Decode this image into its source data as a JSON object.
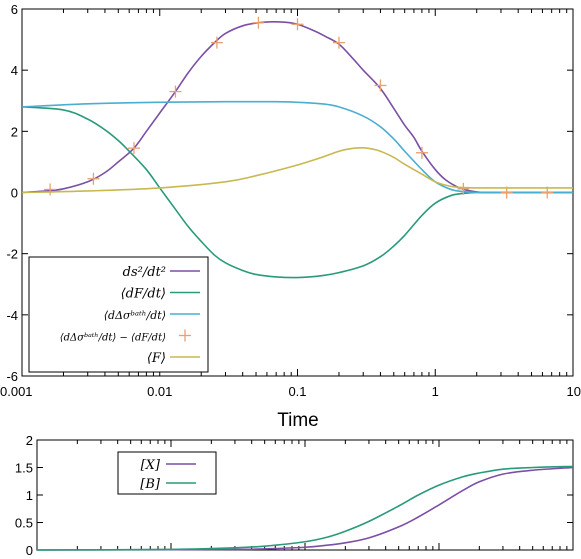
{
  "chart_data": [
    {
      "type": "line",
      "title": "",
      "xlabel": "Time",
      "ylabel": "",
      "xscale": "log",
      "xlim": [
        0.001,
        10
      ],
      "ylim": [
        -6,
        6
      ],
      "x_ticks": [
        "0.001",
        "0.01",
        "0.1",
        "1",
        "10"
      ],
      "y_ticks": [
        "-6",
        "-4",
        "-2",
        "0",
        "2",
        "4",
        "6"
      ],
      "legend_position": "bottom-left",
      "series": [
        {
          "name": "ds²/dt²",
          "color": "#7b4fa6",
          "style": "line",
          "x": [
            0.001,
            0.0015,
            0.002,
            0.003,
            0.004,
            0.005,
            0.0065,
            0.008,
            0.01,
            0.013,
            0.016,
            0.02,
            0.025,
            0.03,
            0.04,
            0.052,
            0.065,
            0.08,
            0.1,
            0.13,
            0.16,
            0.2,
            0.25,
            0.3,
            0.4,
            0.5,
            0.6,
            0.7,
            0.8,
            1.0,
            1.2,
            1.5,
            1.8,
            2.2,
            3,
            5,
            10
          ],
          "y": [
            0.0,
            0.05,
            0.12,
            0.35,
            0.65,
            1.0,
            1.45,
            2.0,
            2.6,
            3.3,
            3.9,
            4.45,
            4.9,
            5.2,
            5.45,
            5.55,
            5.58,
            5.57,
            5.5,
            5.3,
            5.1,
            4.85,
            4.4,
            4.0,
            3.4,
            2.75,
            2.2,
            1.8,
            1.35,
            0.75,
            0.4,
            0.15,
            0.05,
            0.0,
            0.0,
            0.0,
            0.0
          ]
        },
        {
          "name": "⟨dF/dt⟩",
          "color": "#2a9a7a",
          "style": "line",
          "x": [
            0.001,
            0.002,
            0.003,
            0.004,
            0.005,
            0.006,
            0.008,
            0.01,
            0.013,
            0.016,
            0.02,
            0.025,
            0.03,
            0.04,
            0.05,
            0.07,
            0.1,
            0.15,
            0.2,
            0.3,
            0.4,
            0.5,
            0.6,
            0.8,
            1.0,
            1.3,
            1.6,
            2,
            3,
            5,
            10
          ],
          "y": [
            2.8,
            2.7,
            2.4,
            2.05,
            1.7,
            1.35,
            0.75,
            0.15,
            -0.55,
            -1.1,
            -1.6,
            -2.05,
            -2.3,
            -2.55,
            -2.68,
            -2.76,
            -2.78,
            -2.72,
            -2.62,
            -2.4,
            -2.1,
            -1.75,
            -1.4,
            -0.75,
            -0.35,
            -0.1,
            -0.03,
            0.0,
            0.0,
            0.0,
            0.0
          ]
        },
        {
          "name": "⟨dΔσᵇᵃᵗʰ/dt⟩",
          "color": "#4aaed0",
          "style": "line",
          "x": [
            0.001,
            0.003,
            0.01,
            0.03,
            0.07,
            0.1,
            0.15,
            0.2,
            0.3,
            0.4,
            0.5,
            0.6,
            0.8,
            1.0,
            1.3,
            1.6,
            2,
            3,
            5,
            10
          ],
          "y": [
            2.8,
            2.9,
            2.95,
            2.97,
            2.97,
            2.95,
            2.9,
            2.8,
            2.5,
            2.15,
            1.75,
            1.35,
            0.75,
            0.35,
            0.1,
            0.03,
            0.0,
            0.0,
            0.0,
            0.0
          ]
        },
        {
          "name": "⟨dΔσᵇᵃᵗʰ/dt⟩ − ⟨dF/dt⟩",
          "color": "#e8a070",
          "style": "markers",
          "x": [
            0.0016,
            0.0033,
            0.0065,
            0.013,
            0.026,
            0.052,
            0.1,
            0.2,
            0.4,
            0.8,
            1.6,
            3.3,
            6.5
          ],
          "y": [
            0.1,
            0.45,
            1.45,
            3.3,
            4.9,
            5.55,
            5.5,
            4.9,
            3.5,
            1.3,
            0.12,
            0.0,
            0.0
          ]
        },
        {
          "name": "⟨F⟩",
          "color": "#c8b850",
          "style": "line",
          "x": [
            0.001,
            0.003,
            0.01,
            0.03,
            0.05,
            0.1,
            0.15,
            0.2,
            0.25,
            0.3,
            0.35,
            0.4,
            0.5,
            0.6,
            0.8,
            1.0,
            1.3,
            1.6,
            2,
            3,
            5,
            10
          ],
          "y": [
            0.0,
            0.05,
            0.15,
            0.35,
            0.55,
            0.9,
            1.15,
            1.35,
            1.44,
            1.46,
            1.42,
            1.35,
            1.15,
            0.92,
            0.6,
            0.35,
            0.2,
            0.16,
            0.15,
            0.15,
            0.15,
            0.15
          ]
        }
      ]
    },
    {
      "type": "line",
      "title": "",
      "xlabel": "",
      "ylabel": "",
      "xscale": "log",
      "xlim": [
        0.001,
        10
      ],
      "ylim": [
        0,
        2
      ],
      "y_ticks": [
        "0",
        "0.5",
        "1",
        "1.5",
        "2"
      ],
      "legend_position": "top-left",
      "series": [
        {
          "name": "[X]",
          "color": "#7b4fa6",
          "style": "line",
          "x": [
            0.001,
            0.01,
            0.03,
            0.05,
            0.1,
            0.15,
            0.2,
            0.3,
            0.5,
            0.7,
            1.0,
            1.5,
            2,
            3,
            5,
            10
          ],
          "y": [
            0.0,
            0.005,
            0.01,
            0.02,
            0.05,
            0.09,
            0.13,
            0.22,
            0.42,
            0.6,
            0.82,
            1.08,
            1.24,
            1.38,
            1.45,
            1.5
          ]
        },
        {
          "name": "[B]",
          "color": "#2a9a7a",
          "style": "line",
          "x": [
            0.001,
            0.01,
            0.03,
            0.05,
            0.1,
            0.15,
            0.2,
            0.3,
            0.5,
            0.7,
            1.0,
            1.5,
            2,
            3,
            5,
            10
          ],
          "y": [
            0.0,
            0.01,
            0.04,
            0.07,
            0.15,
            0.24,
            0.34,
            0.52,
            0.8,
            1.0,
            1.18,
            1.33,
            1.4,
            1.47,
            1.5,
            1.52
          ]
        }
      ]
    }
  ]
}
